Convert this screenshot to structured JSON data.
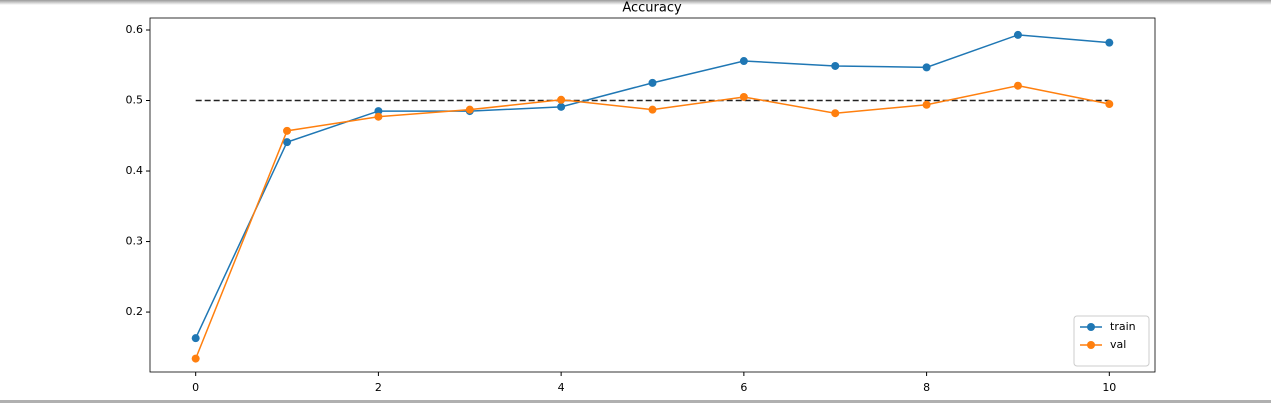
{
  "chart_data": {
    "type": "line",
    "title": "Accuracy",
    "x": [
      0,
      1,
      2,
      3,
      4,
      5,
      6,
      7,
      8,
      9,
      10
    ],
    "series": [
      {
        "name": "train",
        "color": "#1f77b4",
        "values": [
          0.163,
          0.441,
          0.485,
          0.485,
          0.491,
          0.525,
          0.556,
          0.549,
          0.547,
          0.593,
          0.582
        ]
      },
      {
        "name": "val",
        "color": "#ff7f0e",
        "values": [
          0.134,
          0.457,
          0.477,
          0.487,
          0.501,
          0.487,
          0.505,
          0.482,
          0.494,
          0.521,
          0.495
        ]
      }
    ],
    "reference_line": {
      "value": 0.5,
      "color": "#222222"
    },
    "xlim": [
      -0.5,
      10.5
    ],
    "ylim": [
      0.115,
      0.617
    ],
    "xticks": [
      0,
      2,
      4,
      6,
      8,
      10
    ],
    "yticks": [
      0.2,
      0.3,
      0.4,
      0.5,
      0.6
    ],
    "legend": "lower right"
  }
}
